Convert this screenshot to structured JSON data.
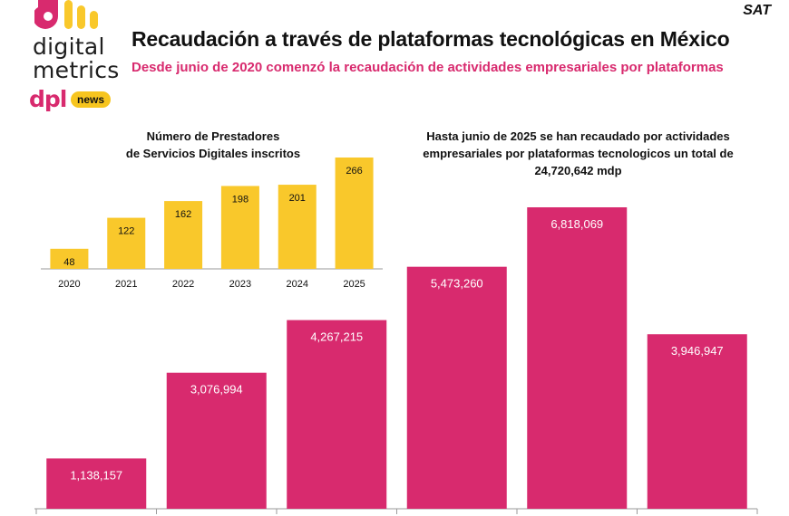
{
  "brand": {
    "line1": "digital",
    "line2": "metrics",
    "dpl": "dpl",
    "news": "news",
    "source": "SAT"
  },
  "header": {
    "title": "Recaudación a través de plataformas tecnológicas en México",
    "subtitle": "Desde junio de 2020 comenzó la recaudación de actividades empresariales por plataformas"
  },
  "colors": {
    "accent": "#d82a6e",
    "yellow": "#f9c82b"
  },
  "chart_data": [
    {
      "type": "bar",
      "title_lines": [
        "Número de Prestadores",
        "de Servicios Digitales inscritos"
      ],
      "categories": [
        "2020",
        "2021",
        "2022",
        "2023",
        "2024",
        "2025"
      ],
      "values": [
        48,
        122,
        162,
        198,
        201,
        266
      ],
      "data_labels": [
        "48",
        "122",
        "162",
        "198",
        "201",
        "266"
      ],
      "ylim": [
        0,
        266
      ],
      "grid": false,
      "color": "#f9c82b"
    },
    {
      "type": "bar",
      "title_lines": [
        "Hasta junio de 2025 se han recaudado por actividades",
        "empresariales por plataformas tecnologicos un total de",
        "24,720,642 mdp"
      ],
      "categories": [
        "",
        "",
        "",
        "",
        "",
        ""
      ],
      "values": [
        1138157,
        3076994,
        4267215,
        5473260,
        6818069,
        3946947
      ],
      "data_labels": [
        "1,138,157",
        "3,076,994",
        "4,267,215",
        "5,473,260",
        "6,818,069",
        "3,946,947"
      ],
      "ylim": [
        0,
        6818069
      ],
      "grid": false,
      "color": "#d82a6e"
    }
  ]
}
